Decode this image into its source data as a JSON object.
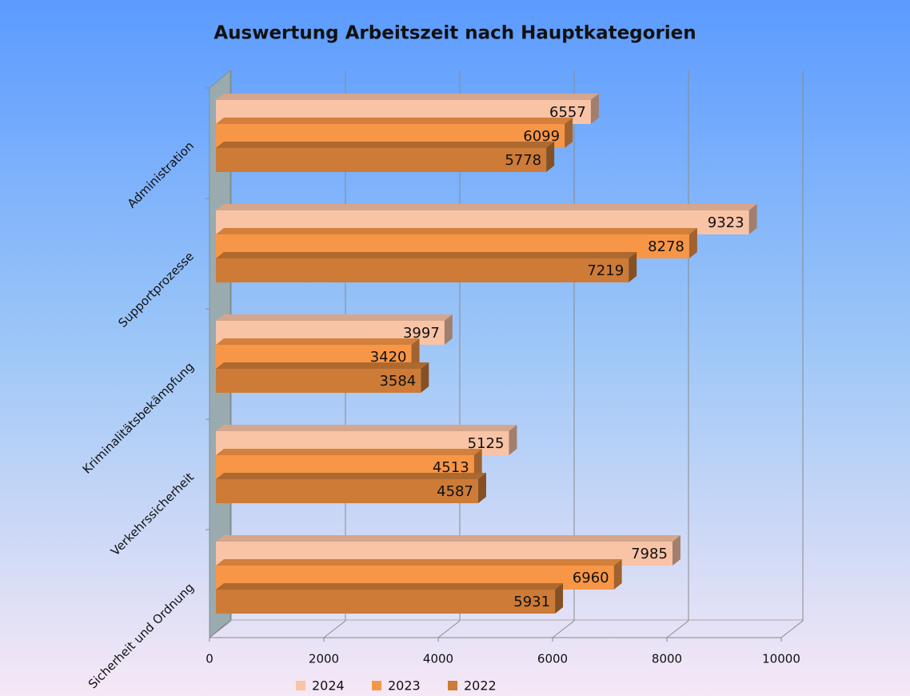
{
  "chart_data": {
    "type": "bar3d-horizontal",
    "title": "Auswertung Arbeitszeit nach Hauptkategorien",
    "categories": [
      "Administration",
      "Supportprozesse",
      "Kriminalitätsbekämpfung",
      "Verkehrssicherheit",
      "Sicherheit und Ordnung"
    ],
    "series": [
      {
        "name": "2024",
        "color": "#f9c3a6",
        "values": [
          6557,
          9323,
          3997,
          5125,
          7985
        ]
      },
      {
        "name": "2023",
        "color": "#f79646",
        "values": [
          6099,
          8278,
          3420,
          4513,
          6960
        ]
      },
      {
        "name": "2022",
        "color": "#cd7b37",
        "values": [
          5778,
          7219,
          3584,
          4587,
          5931
        ]
      }
    ],
    "xlim": [
      0,
      10000
    ],
    "xticks": [
      0,
      2000,
      4000,
      6000,
      8000,
      10000
    ],
    "grid": true,
    "legend": "bottom"
  }
}
